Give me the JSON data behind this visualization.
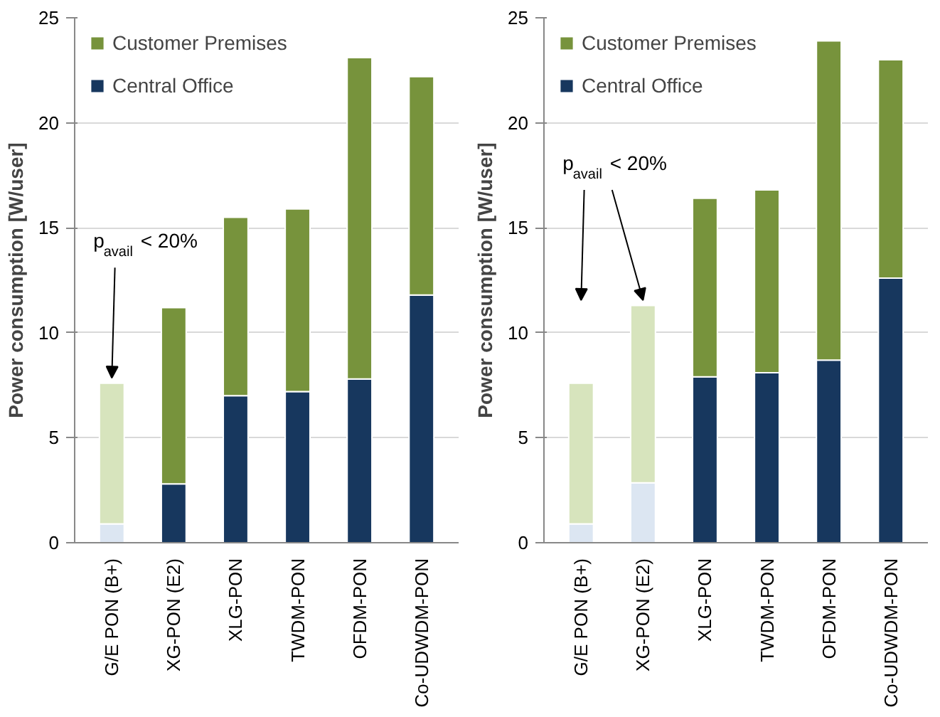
{
  "chart_data": [
    {
      "type": "bar",
      "stacked": true,
      "ylabel": "Power consumption [W/user]",
      "categories": [
        "G/E PON (B+)",
        "XG-PON (E2)",
        "XLG-PON",
        "TWDM-PON",
        "OFDM-PON",
        "Co-UDWDM-PON"
      ],
      "ylim": [
        0,
        25
      ],
      "yticks": [
        0,
        5,
        10,
        15,
        20,
        25
      ],
      "grid": "y",
      "legend": "top left",
      "series": [
        {
          "name": "Central Office",
          "color": "#17375e",
          "colors": [
            "#dce6f2",
            "#17375e",
            "#17375e",
            "#17375e",
            "#17375e",
            "#17375e"
          ],
          "values": [
            0.9,
            2.8,
            7.0,
            7.2,
            7.8,
            11.8
          ]
        },
        {
          "name": "Customer Premises",
          "color": "#77933c",
          "colors": [
            "#d7e4bd",
            "#77933c",
            "#77933c",
            "#77933c",
            "#77933c",
            "#77933c"
          ],
          "values": [
            6.7,
            8.4,
            8.5,
            8.7,
            15.3,
            10.4
          ]
        }
      ],
      "annotations": [
        {
          "text": "p$_{avail}$ < 20%",
          "x": "G/E PON (B+)",
          "y": 7.6
        }
      ]
    },
    {
      "type": "bar",
      "stacked": true,
      "ylabel": "Power consumption [W/user]",
      "categories": [
        "G/E PON (B+)",
        "XG-PON (E2)",
        "XLG-PON",
        "TWDM-PON",
        "OFDM-PON",
        "Co-UDWDM-PON"
      ],
      "ylim": [
        0,
        25
      ],
      "yticks": [
        0,
        5,
        10,
        15,
        20,
        25
      ],
      "grid": "y",
      "legend": "top left",
      "series": [
        {
          "name": "Central Office",
          "color": "#17375e",
          "colors": [
            "#dce6f2",
            "#dce6f2",
            "#17375e",
            "#17375e",
            "#17375e",
            "#17375e"
          ],
          "values": [
            0.9,
            2.85,
            7.9,
            8.1,
            8.7,
            12.6
          ]
        },
        {
          "name": "Customer Premises",
          "color": "#77933c",
          "colors": [
            "#d7e4bd",
            "#d7e4bd",
            "#77933c",
            "#77933c",
            "#77933c",
            "#77933c"
          ],
          "values": [
            6.7,
            8.45,
            8.5,
            8.7,
            15.2,
            10.4
          ]
        }
      ],
      "annotations": [
        {
          "text": "p$_{avail}$ < 20%",
          "x": "XG-PON (E2)",
          "y": 11.3
        }
      ]
    }
  ]
}
